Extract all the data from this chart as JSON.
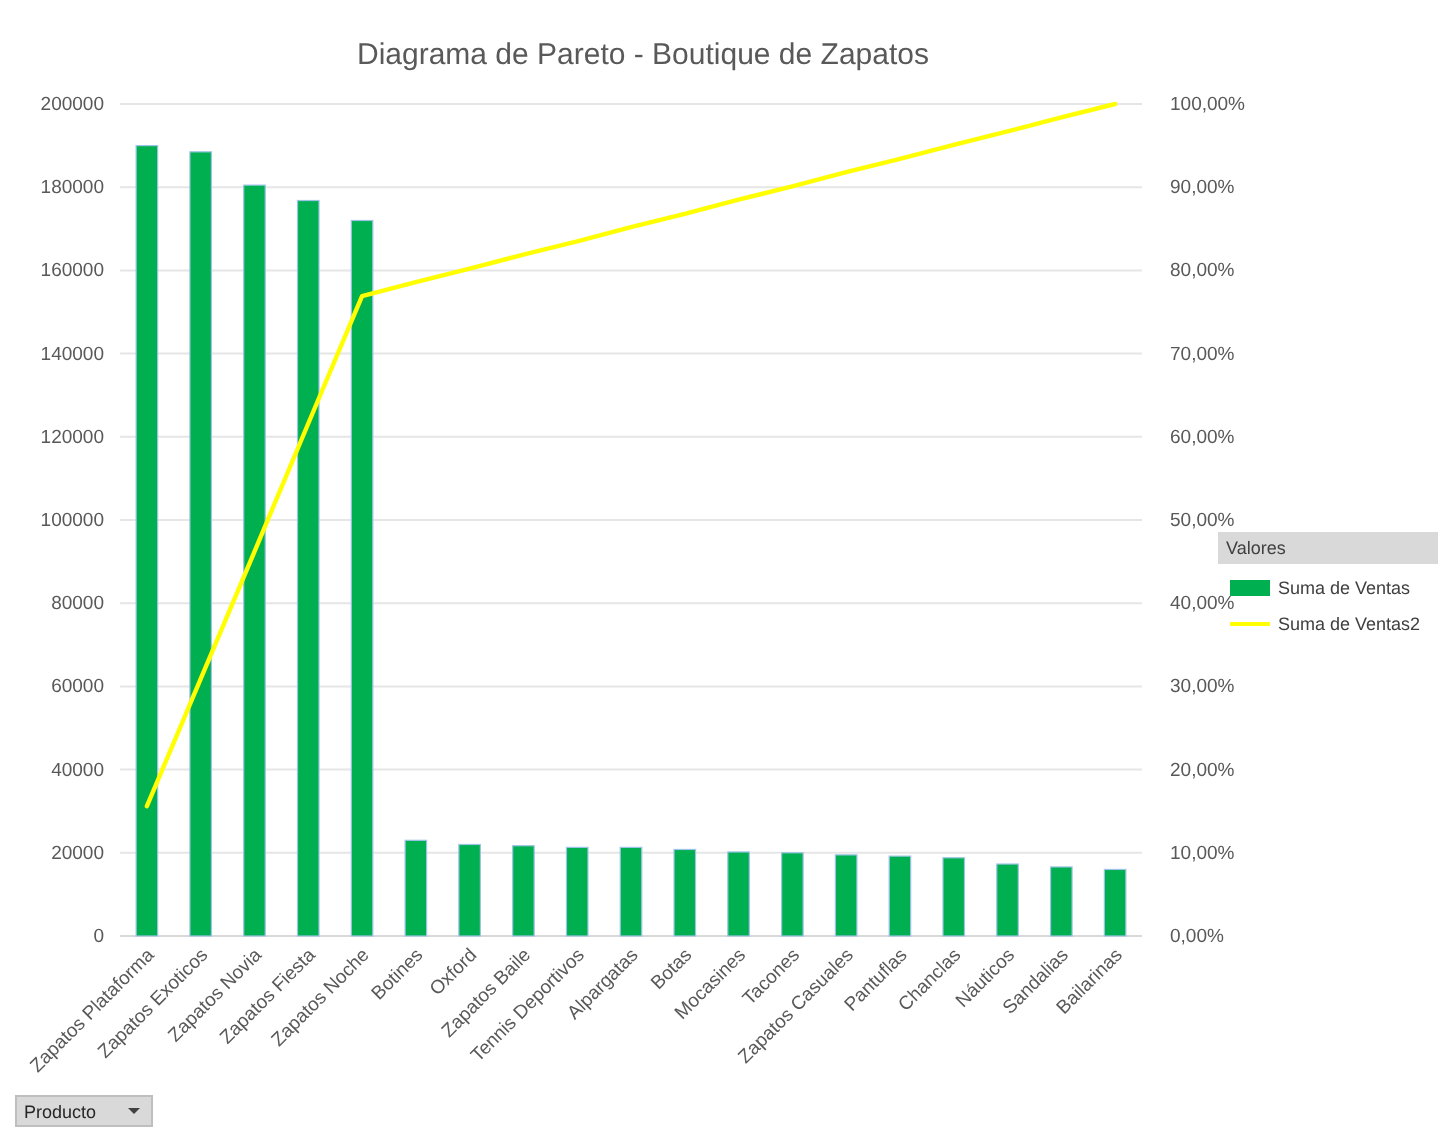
{
  "chart_data": {
    "type": "bar",
    "title": "Diagrama de Pareto - Boutique de Zapatos",
    "legend_title": "Valores",
    "legend": "right",
    "grid": "y",
    "categories": [
      "Zapatos Plataforma",
      "Zapatos Exoticos",
      "Zapatos Novia",
      "Zapatos Fiesta",
      "Zapatos Noche",
      "Botines",
      "Oxford",
      "Zapatos Baile",
      "Tennis Deportivos",
      "Alpargatas",
      "Botas",
      "Mocasines",
      "Tacones",
      "Zapatos Casuales",
      "Pantuflas",
      "Chanclas",
      "Náuticos",
      "Sandalias",
      "Bailarinas"
    ],
    "series": [
      {
        "name": "Suma de Ventas",
        "color": "#00b050",
        "values": [
          190000,
          188500,
          180500,
          176800,
          172000,
          23000,
          22000,
          21700,
          21300,
          21300,
          20800,
          20200,
          20000,
          19500,
          19200,
          18800,
          17300,
          16600,
          16000
        ]
      },
      {
        "name": "Suma de Ventas2",
        "type": "line",
        "axis": "y2",
        "color": "#ffff00",
        "values": [
          15.6,
          30.9,
          46.2,
          61.6,
          76.9,
          78.6,
          80.2,
          81.9,
          83.5,
          85.2,
          86.8,
          88.5,
          90.1,
          91.8,
          93.4,
          95.1,
          96.7,
          98.4,
          100
        ]
      }
    ],
    "ylim": [
      0,
      200000
    ],
    "yticks": [
      0,
      20000,
      40000,
      60000,
      80000,
      100000,
      120000,
      140000,
      160000,
      180000,
      200000
    ],
    "y2lim": [
      0,
      100
    ],
    "y2ticks": [
      {
        "value": 0,
        "label": "0,00%"
      },
      {
        "value": 10,
        "label": "10,00%"
      },
      {
        "value": 20,
        "label": "20,00%"
      },
      {
        "value": 30,
        "label": "30,00%"
      },
      {
        "value": 40,
        "label": "40,00%"
      },
      {
        "value": 50,
        "label": "50,00%"
      },
      {
        "value": 60,
        "label": "60,00%"
      },
      {
        "value": 70,
        "label": "70,00%"
      },
      {
        "value": 80,
        "label": "80,00%"
      },
      {
        "value": 90,
        "label": "90,00%"
      },
      {
        "value": 100,
        "label": "100,00%"
      }
    ],
    "annotations": [
      "Producto"
    ]
  }
}
